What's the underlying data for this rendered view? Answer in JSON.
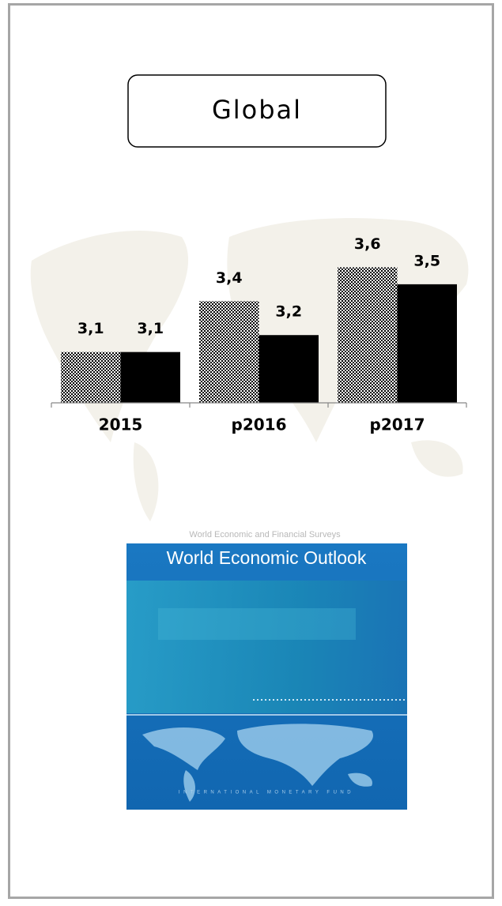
{
  "chart_data": {
    "type": "bar",
    "title": "Global",
    "categories": [
      "2015",
      "p2016",
      "p2017"
    ],
    "series": [
      {
        "color": "#000000",
        "pattern": "checker",
        "values": [
          3.1,
          3.4,
          3.6
        ],
        "value_labels": [
          "3,1",
          "3,4",
          "3,6"
        ]
      },
      {
        "color": "#000000",
        "values": [
          3.1,
          3.2,
          3.5
        ],
        "value_labels": [
          "3,1",
          "3,2",
          "3,5"
        ]
      }
    ],
    "ylim": [
      2.8,
      3.7
    ]
  },
  "cover": {
    "series_title": "World Economic and Financial Surveys",
    "title": "World Economic Outlook",
    "publisher": "INTERNATIONAL MONETARY FUND"
  }
}
